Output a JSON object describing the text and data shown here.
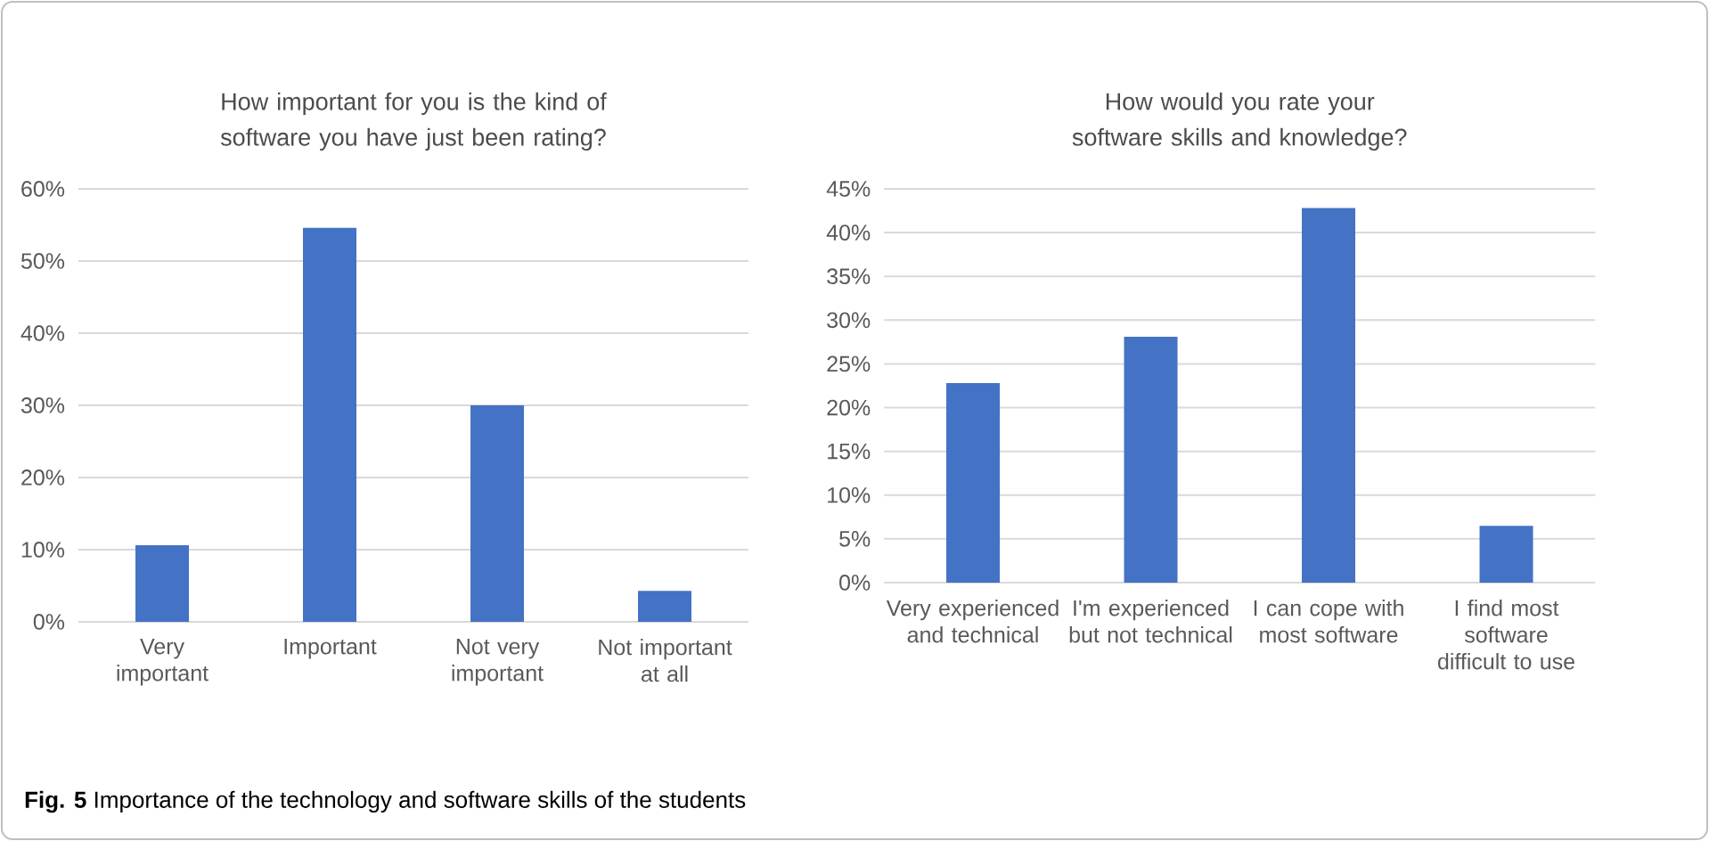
{
  "chart_data": [
    {
      "type": "bar",
      "title": "How important for you is the kind of software you have just been rating?",
      "categories": [
        "Very important",
        "Important",
        "Not very important",
        "Not important at all"
      ],
      "values": [
        10.6,
        54.6,
        30.0,
        4.3
      ],
      "color": "#4472c4",
      "ylim": [
        0,
        60
      ],
      "yticks": [
        {
          "value": 0,
          "label": "0%"
        },
        {
          "value": 10,
          "label": "10%"
        },
        {
          "value": 20,
          "label": "20%"
        },
        {
          "value": 30,
          "label": "30%"
        },
        {
          "value": 40,
          "label": "40%"
        },
        {
          "value": 50,
          "label": "50%"
        },
        {
          "value": 60,
          "label": "60%"
        }
      ],
      "grid": "y",
      "annotations": [
        "**Fig. 5** Importance of the technology and software skills of the students"
      ]
    },
    {
      "type": "bar",
      "title": "How would you rate your software skills and knowledge?",
      "categories": [
        "Very experienced and technical",
        "I'm experienced but not technical",
        "I can cope with most software",
        "I find most software difficult to use"
      ],
      "values": [
        22.8,
        28.1,
        42.8,
        6.5
      ],
      "color": "#4472c4",
      "ylim": [
        0,
        45
      ],
      "yticks": [
        {
          "value": 0,
          "label": "0%"
        },
        {
          "value": 5,
          "label": "5%"
        },
        {
          "value": 10,
          "label": "10%"
        },
        {
          "value": 15,
          "label": "15%"
        },
        {
          "value": 20,
          "label": "20%"
        },
        {
          "value": 25,
          "label": "25%"
        },
        {
          "value": 30,
          "label": "30%"
        },
        {
          "value": 35,
          "label": "35%"
        },
        {
          "value": 40,
          "label": "40%"
        },
        {
          "value": 45,
          "label": "45%"
        }
      ],
      "grid": "y"
    }
  ]
}
